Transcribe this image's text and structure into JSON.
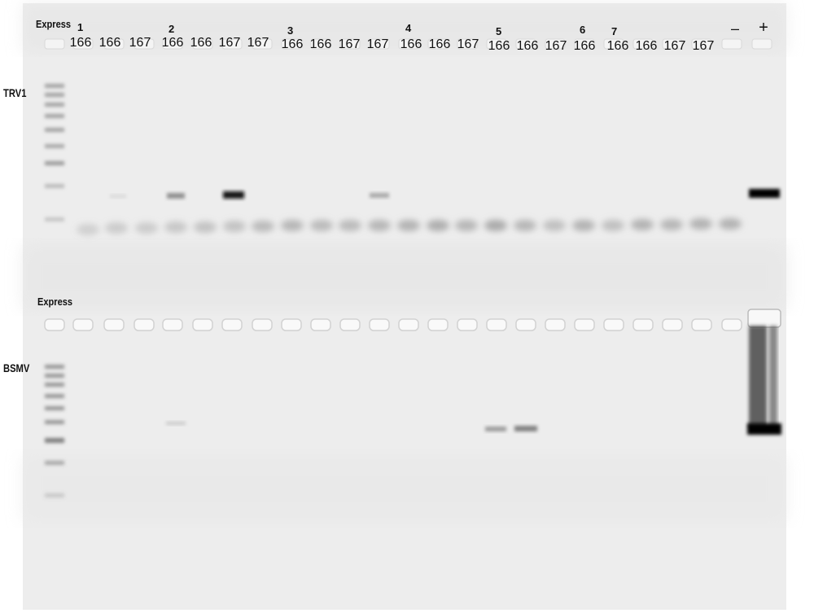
{
  "top_panel": {
    "marker_label": "Express",
    "side_label": "TRV1",
    "group_numbers": [
      "1",
      "2",
      "3",
      "4",
      "5",
      "6",
      "7"
    ],
    "lanes": [
      "166",
      "166",
      "167",
      "166",
      "166",
      "167",
      "167",
      "166",
      "166",
      "167",
      "167",
      "166",
      "166",
      "167",
      "166",
      "166",
      "167",
      "166",
      "166",
      "166",
      "167",
      "167"
    ],
    "neg_label": "–",
    "pos_label": "+"
  },
  "bottom_panel": {
    "marker_label": "Express",
    "side_label": "BSMV"
  }
}
